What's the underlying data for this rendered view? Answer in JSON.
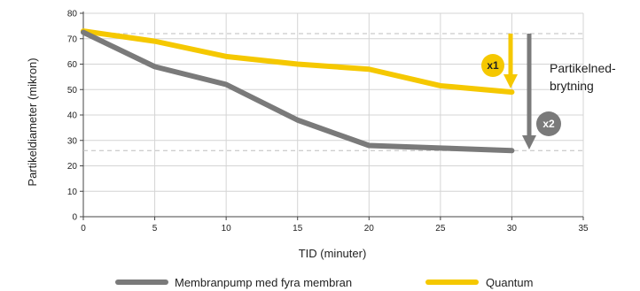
{
  "chart_data": {
    "type": "line",
    "xlabel": "TID (minuter)",
    "ylabel": "Partikeldiameter (mikron)",
    "xlim": [
      0,
      35
    ],
    "ylim": [
      0,
      80
    ],
    "x_ticks": [
      0,
      5,
      10,
      15,
      20,
      25,
      30,
      35
    ],
    "y_ticks": [
      0,
      10,
      20,
      30,
      40,
      50,
      60,
      70,
      80
    ],
    "grid": true,
    "legend_position": "bottom",
    "reference_lines": [
      72,
      26
    ],
    "series": [
      {
        "name": "Membranpump med fyra membran",
        "color": "#7a7a7a",
        "x": [
          0,
          5,
          10,
          15,
          20,
          25,
          30
        ],
        "y": [
          72.5,
          59,
          52,
          38,
          28,
          27,
          26
        ]
      },
      {
        "name": "Quantum",
        "color": "#f5c800",
        "x": [
          0,
          5,
          10,
          15,
          20,
          25,
          30
        ],
        "y": [
          73,
          69,
          63,
          60,
          58,
          51.5,
          49
        ]
      }
    ],
    "annotations": {
      "label_line1": "Partikelned-",
      "label_line2": "brytning",
      "badge1": "x1",
      "badge2": "x2"
    }
  }
}
